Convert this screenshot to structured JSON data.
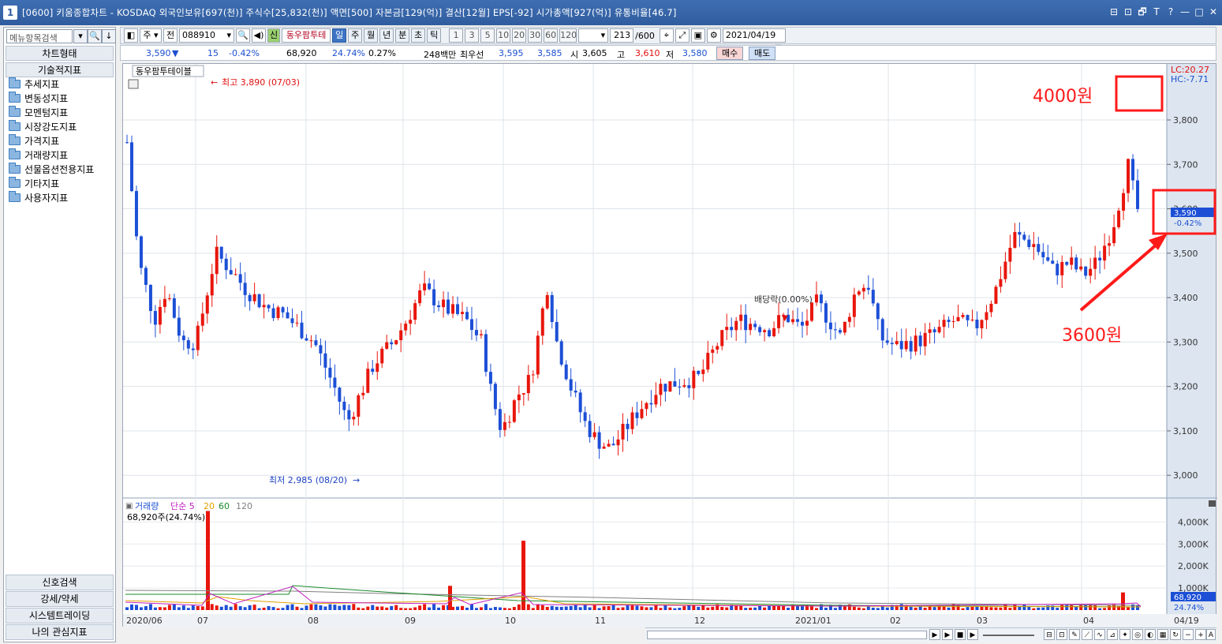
{
  "window": {
    "badge": "1",
    "title": "[0600] 키움종합차트 - KOSDAQ 외국인보유[697(천)] 주식수[25,832(천)] 액면[500] 자본금[129(억)] 결산[12월] EPS[-92] 시가총액[927(억)] 유통비율[46.7]",
    "controls": [
      "⊟",
      "⊡",
      "🗗",
      "T",
      "?",
      "—",
      "□",
      "✕"
    ]
  },
  "left_panel": {
    "search_placeholder": "메뉴항목검색",
    "section_chart": "차트형태",
    "section_tech": "기술적지표",
    "tree": [
      "추세지표",
      "변동성지표",
      "모멘텀지표",
      "시장강도지표",
      "가격지표",
      "거래량지표",
      "선물옵션전용지표",
      "기타지표",
      "사용자지표"
    ],
    "bottom": [
      "신호검색",
      "강세/약세",
      "시스템트레이딩",
      "나의 관심지표"
    ]
  },
  "toolbar": {
    "period_select": "주",
    "prev_label": "전",
    "code": "088910",
    "credit_badge": "신",
    "stock_name": "동우팜투테",
    "periods": [
      "일",
      "주",
      "월",
      "년",
      "분",
      "초",
      "틱"
    ],
    "active_period": "일",
    "intervals": [
      "1",
      "3",
      "5",
      "10",
      "20",
      "30",
      "60",
      "120"
    ],
    "count_value": "213",
    "count_total": "/600",
    "date": "2021/04/19"
  },
  "quote": {
    "price": "3,590",
    "arrow": "▼",
    "change": "15",
    "change_pct": "-0.42%",
    "volume": "68,920",
    "turnover": "24.74%",
    "ratio": "0.27%",
    "amount": "248백만",
    "best_label": "최우선",
    "best_ask": "3,595",
    "best_bid": "3,585",
    "open_label": "시",
    "open": "3,605",
    "high_label": "고",
    "high": "3,610",
    "low_label": "저",
    "low": "3,580",
    "buy_label": "매수",
    "sell_label": "매도"
  },
  "chart": {
    "price_title": "동우팜투테이블",
    "high_note": "최고 3,890 (07/03)",
    "low_note": "최저 2,985 (08/20)",
    "dividend_note": "배당락(0.00%)",
    "lc_label": "LC:20.27",
    "hc_label": "HC:-7.71",
    "current_price_tag": "3,590",
    "current_pct_tag": "-0.42%",
    "annotation_4000": "4000원",
    "annotation_3600": "3600원",
    "price_ticks": [
      "3,800",
      "3,700",
      "3,600",
      "3,500",
      "3,400",
      "3,300",
      "3,200",
      "3,100",
      "3,000"
    ],
    "volume_legend": [
      "거래량",
      "단순 5",
      "20",
      "60",
      "120"
    ],
    "volume_note": "68,920주(24.74%)",
    "volume_ticks": [
      "4,000K",
      "3,000K",
      "2,000K",
      "1,000K"
    ],
    "volume_tag": "68,920",
    "volume_tag_pct": "24.74%",
    "x_labels": [
      "2020/06",
      "07",
      "08",
      "09",
      "10",
      "11",
      "12",
      "2021/01",
      "02",
      "03",
      "04",
      "04/19"
    ],
    "colors": {
      "up": "#e8160c",
      "down": "#1c4fd6",
      "ma5": "#c020c0",
      "ma20": "#e0a000",
      "ma60": "#1a8a2a",
      "ma120": "#808080",
      "annotation": "#ff1a1a"
    }
  },
  "chart_data": {
    "type": "candlestick",
    "title": "동우팜투테이블",
    "ylim": [
      2950,
      3900
    ],
    "high": 3890,
    "low": 2985,
    "last_close": 3590,
    "last_volume": 68920,
    "daily_ohlc_reference": {
      "open": 3605,
      "high": 3610,
      "low": 3580,
      "close": 3590
    }
  }
}
